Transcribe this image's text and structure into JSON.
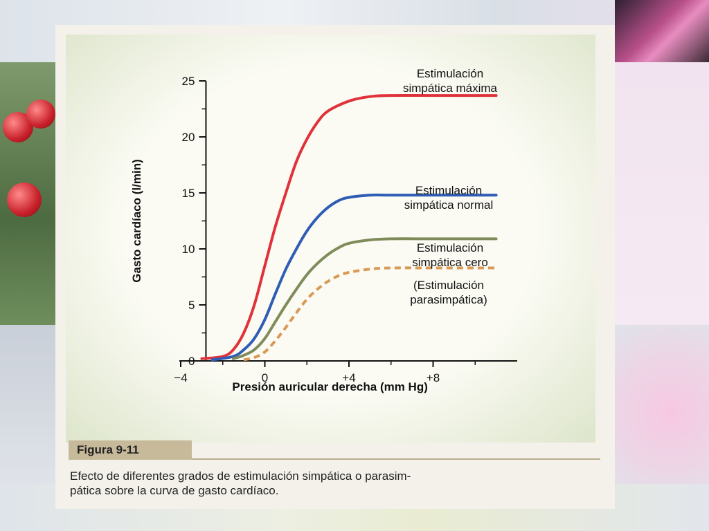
{
  "figure": {
    "label": "Figura 9-11",
    "caption_line1": "Efecto de diferentes grados de estimulación simpática o parasim-",
    "caption_line2": "pática sobre la curva de gasto cardíaco."
  },
  "chart_data": {
    "type": "line",
    "xlabel": "Presión auricular derecha (mm Hg)",
    "ylabel": "Gasto cardíaco (l/min)",
    "xlim": [
      -4,
      12
    ],
    "ylim": [
      0,
      25
    ],
    "x_ticks": [
      -4,
      0,
      4,
      8
    ],
    "x_tick_labels": [
      "−4",
      "0",
      "+4",
      "+8"
    ],
    "y_ticks": [
      0,
      5,
      10,
      15,
      20,
      25
    ],
    "y_tick_labels": [
      "0",
      "5",
      "10",
      "15",
      "20",
      "25"
    ],
    "grid": false,
    "series": [
      {
        "name": "Estimulación simpática máxima",
        "label_lines": [
          "Estimulación",
          "simpática máxima"
        ],
        "color": "#e0323a",
        "dash": "solid",
        "points": [
          [
            -3,
            0.2
          ],
          [
            -2,
            0.4
          ],
          [
            -1.5,
            1
          ],
          [
            -1,
            2.5
          ],
          [
            -0.5,
            5
          ],
          [
            0,
            8.5
          ],
          [
            0.5,
            12
          ],
          [
            1,
            15
          ],
          [
            1.5,
            17.8
          ],
          [
            2,
            19.8
          ],
          [
            2.5,
            21.3
          ],
          [
            3,
            22.3
          ],
          [
            4,
            23.2
          ],
          [
            5,
            23.6
          ],
          [
            6,
            23.7
          ],
          [
            8,
            23.7
          ],
          [
            11,
            23.7
          ]
        ]
      },
      {
        "name": "Estimulación simpática normal",
        "label_lines": [
          "Estimulación",
          "simpática normal"
        ],
        "color": "#2f5db5",
        "dash": "solid",
        "points": [
          [
            -2.5,
            0.1
          ],
          [
            -1.5,
            0.4
          ],
          [
            -1,
            1
          ],
          [
            -0.5,
            2
          ],
          [
            0,
            3.7
          ],
          [
            0.5,
            6
          ],
          [
            1,
            8.2
          ],
          [
            1.5,
            10
          ],
          [
            2,
            11.6
          ],
          [
            2.5,
            12.8
          ],
          [
            3,
            13.7
          ],
          [
            3.5,
            14.3
          ],
          [
            4,
            14.6
          ],
          [
            5,
            14.8
          ],
          [
            6,
            14.8
          ],
          [
            8,
            14.8
          ],
          [
            11,
            14.8
          ]
        ]
      },
      {
        "name": "Estimulación simpática cero",
        "label_lines": [
          "Estimulación",
          "simpática cero"
        ],
        "color": "#7f8c5a",
        "dash": "solid",
        "points": [
          [
            -1.5,
            0.2
          ],
          [
            -1,
            0.5
          ],
          [
            -0.5,
            1
          ],
          [
            0,
            2
          ],
          [
            0.5,
            3.5
          ],
          [
            1,
            5
          ],
          [
            1.5,
            6.4
          ],
          [
            2,
            7.7
          ],
          [
            2.5,
            8.7
          ],
          [
            3,
            9.5
          ],
          [
            3.5,
            10.1
          ],
          [
            4,
            10.5
          ],
          [
            5,
            10.8
          ],
          [
            6,
            10.9
          ],
          [
            8,
            10.9
          ],
          [
            11,
            10.9
          ]
        ]
      },
      {
        "name": "(Estimulación parasimpática)",
        "label_lines": [
          "(Estimulación",
          "parasimpática)"
        ],
        "color": "#d89a55",
        "dash": "dashed",
        "points": [
          [
            -1,
            0.1
          ],
          [
            -0.5,
            0.3
          ],
          [
            0,
            0.8
          ],
          [
            0.5,
            1.8
          ],
          [
            1,
            3
          ],
          [
            1.5,
            4.3
          ],
          [
            2,
            5.5
          ],
          [
            2.5,
            6.4
          ],
          [
            3,
            7.1
          ],
          [
            3.5,
            7.6
          ],
          [
            4,
            7.9
          ],
          [
            5,
            8.2
          ],
          [
            6,
            8.3
          ],
          [
            8,
            8.3
          ],
          [
            11,
            8.3
          ]
        ]
      }
    ]
  }
}
